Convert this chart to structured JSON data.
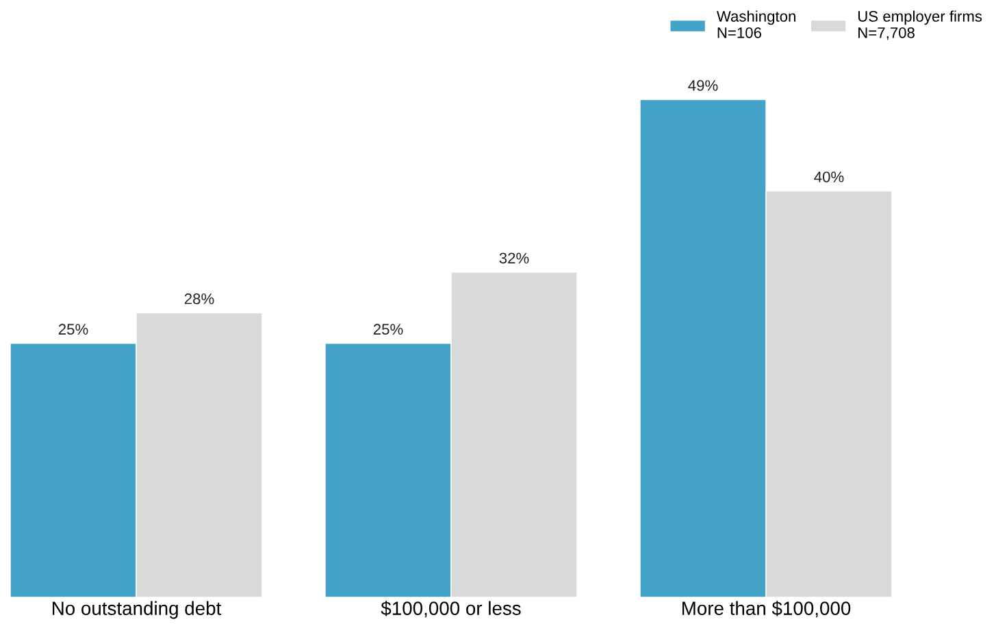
{
  "chart_data": {
    "type": "bar",
    "categories": [
      "No outstanding debt",
      "$100,000 or less",
      "More than $100,000"
    ],
    "series": [
      {
        "name": "Washington\nN=106",
        "color": "#43a2c8",
        "values": [
          25,
          25,
          49
        ],
        "value_labels": [
          "25%",
          "25%",
          "49%"
        ]
      },
      {
        "name": "US employer firms\nN=7,708",
        "color": "#d9d9d9",
        "values": [
          28,
          32,
          40
        ],
        "value_labels": [
          "28%",
          "32%",
          "40%"
        ]
      }
    ],
    "tick_labels": "x",
    "legend": "top right",
    "grid": false
  }
}
